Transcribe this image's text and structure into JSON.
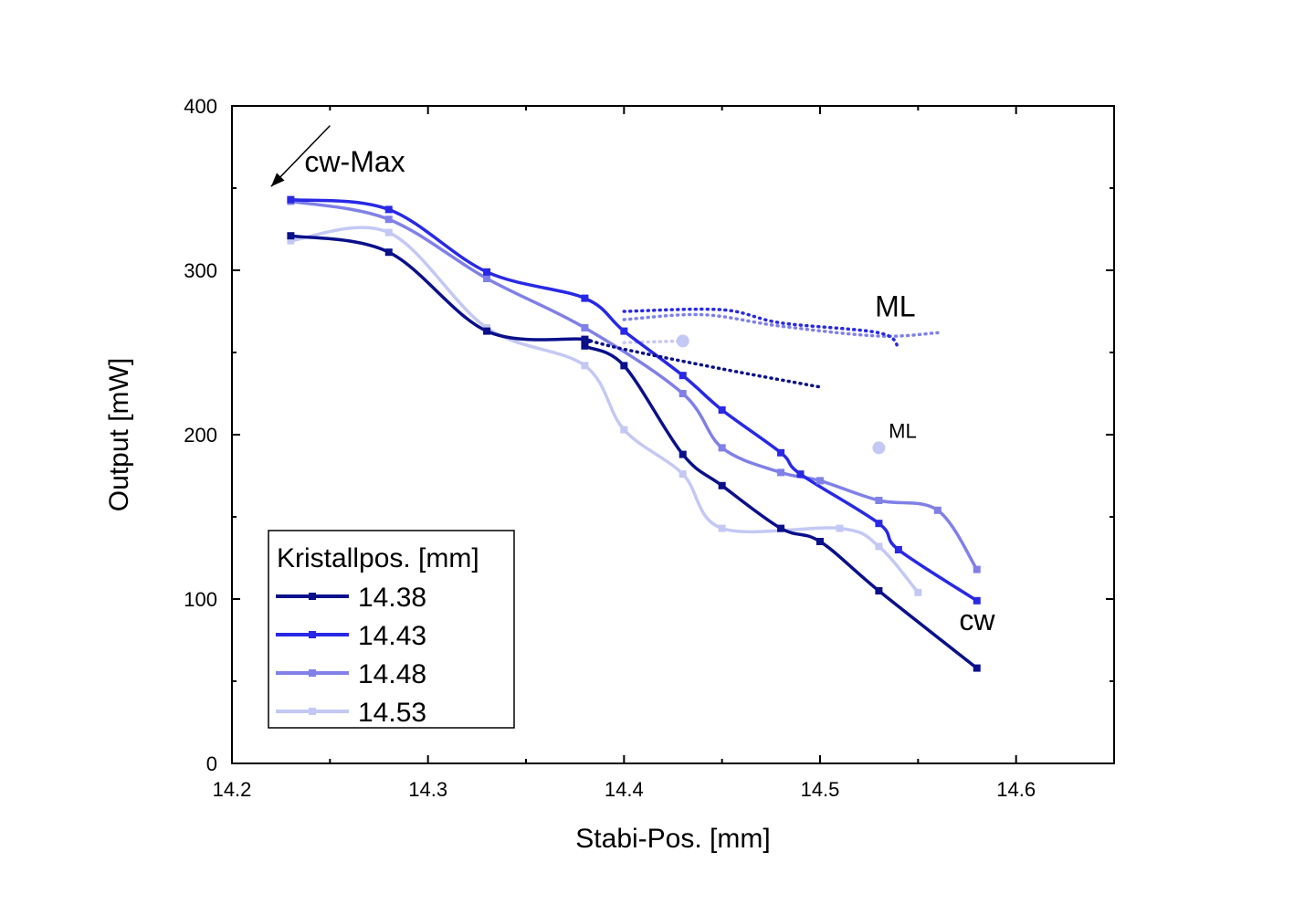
{
  "chart_data": {
    "type": "line",
    "xlabel": "Stabi-Pos. [mm]",
    "ylabel": "Output [mW]",
    "xlim": [
      14.2,
      14.65
    ],
    "ylim": [
      0,
      400
    ],
    "xticks": [
      14.2,
      14.3,
      14.4,
      14.5,
      14.6
    ],
    "yticks": [
      0,
      100,
      200,
      300,
      400
    ],
    "grid": false,
    "legend": {
      "title": "Kristallpos. [mm]",
      "placement": "bottom-left"
    },
    "series": [
      {
        "name": "14.38",
        "color": "#0a0f8a",
        "cw": [
          [
            14.23,
            321
          ],
          [
            14.28,
            311
          ],
          [
            14.33,
            263
          ],
          [
            14.38,
            258
          ],
          [
            14.38,
            254
          ],
          [
            14.4,
            242
          ],
          [
            14.43,
            188
          ],
          [
            14.45,
            169
          ],
          [
            14.48,
            143
          ],
          [
            14.5,
            135
          ],
          [
            14.53,
            105
          ],
          [
            14.58,
            58
          ]
        ],
        "ml": [
          [
            14.38,
            258
          ],
          [
            14.4,
            252
          ],
          [
            14.45,
            240
          ],
          [
            14.5,
            229
          ]
        ]
      },
      {
        "name": "14.43",
        "color": "#2828e6",
        "cw": [
          [
            14.23,
            343
          ],
          [
            14.28,
            337
          ],
          [
            14.33,
            299
          ],
          [
            14.38,
            283
          ],
          [
            14.4,
            263
          ],
          [
            14.43,
            236
          ],
          [
            14.45,
            215
          ],
          [
            14.48,
            189
          ],
          [
            14.49,
            176
          ],
          [
            14.53,
            146
          ],
          [
            14.54,
            130
          ],
          [
            14.58,
            99
          ]
        ],
        "ml": [
          [
            14.4,
            275
          ],
          [
            14.45,
            276
          ],
          [
            14.48,
            268
          ],
          [
            14.53,
            262
          ],
          [
            14.54,
            253
          ]
        ]
      },
      {
        "name": "14.48",
        "color": "#8080e8",
        "cw": [
          [
            14.23,
            342
          ],
          [
            14.28,
            331
          ],
          [
            14.33,
            295
          ],
          [
            14.38,
            265
          ],
          [
            14.43,
            225
          ],
          [
            14.45,
            192
          ],
          [
            14.48,
            177
          ],
          [
            14.5,
            172
          ],
          [
            14.53,
            160
          ],
          [
            14.56,
            154
          ],
          [
            14.58,
            118
          ]
        ],
        "ml": [
          [
            14.4,
            270
          ],
          [
            14.44,
            273
          ],
          [
            14.48,
            266
          ],
          [
            14.53,
            260
          ],
          [
            14.56,
            262
          ]
        ]
      },
      {
        "name": "14.53",
        "color": "#c4c8f4",
        "cw": [
          [
            14.23,
            318
          ],
          [
            14.28,
            323
          ],
          [
            14.33,
            265
          ],
          [
            14.38,
            242
          ],
          [
            14.4,
            203
          ],
          [
            14.43,
            176
          ],
          [
            14.45,
            143
          ],
          [
            14.51,
            143
          ],
          [
            14.53,
            132
          ],
          [
            14.55,
            104
          ]
        ],
        "ml": [
          [
            14.4,
            256
          ],
          [
            14.43,
            257
          ]
        ]
      }
    ],
    "markers": [
      {
        "label": "",
        "x": 14.43,
        "y": 257,
        "color": "#c4c8f4"
      },
      {
        "label": "",
        "x": 14.53,
        "y": 192,
        "color": "#c4c8f4"
      }
    ],
    "annotations": [
      {
        "text": "cw-Max",
        "x": 14.237,
        "y": 360,
        "size": "big",
        "arrow_to": [
          14.22,
          351
        ],
        "arrow_from": [
          14.25,
          388
        ]
      },
      {
        "text": "ML",
        "x": 14.528,
        "y": 272,
        "size": "big"
      },
      {
        "text": "ML",
        "x": 14.535,
        "y": 198,
        "size": "small"
      },
      {
        "text": "cw",
        "x": 14.571,
        "y": 81,
        "size": "big"
      }
    ]
  }
}
